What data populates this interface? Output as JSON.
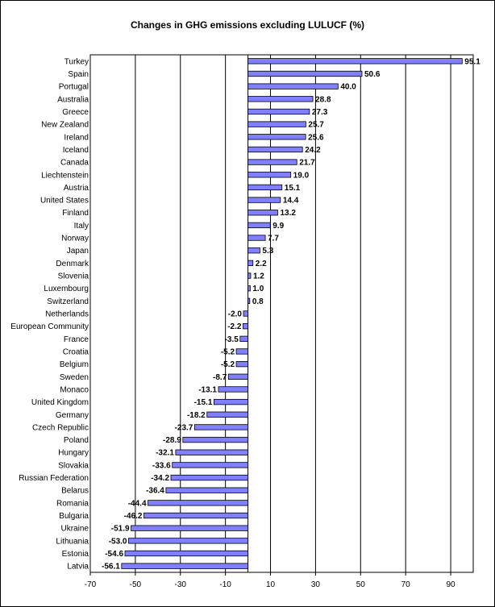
{
  "chart_data": {
    "type": "bar",
    "orientation": "horizontal",
    "title": "Changes in GHG emissions excluding LULUCF (%)",
    "xlabel": "",
    "ylabel": "",
    "xlim": [
      -70,
      100
    ],
    "x_ticks": [
      -70,
      -50,
      -30,
      -10,
      10,
      30,
      50,
      70,
      90
    ],
    "grid": "vertical",
    "legend": "none",
    "bar_color": "#8080ff",
    "bar_edge_color": "#000000",
    "categories": [
      "Turkey",
      "Spain",
      "Portugal",
      "Australia",
      "Greece",
      "New Zealand",
      "Ireland",
      "Iceland",
      "Canada",
      "Liechtenstein",
      "Austria",
      "United States",
      "Finland",
      "Italy",
      "Norway",
      "Japan",
      "Denmark",
      "Slovenia",
      "Luxembourg",
      "Switzerland",
      "Netherlands",
      "European Community",
      "France",
      "Croatia",
      "Belgium",
      "Sweden",
      "Monaco",
      "United Kingdom",
      "Germany",
      "Czech Republic",
      "Poland",
      "Hungary",
      "Slovakia",
      "Russian Federation",
      "Belarus",
      "Romania",
      "Bulgaria",
      "Ukraine",
      "Lithuania",
      "Estonia",
      "Latvia"
    ],
    "values": [
      95.1,
      50.6,
      40.0,
      28.8,
      27.3,
      25.7,
      25.6,
      24.2,
      21.7,
      19.0,
      15.1,
      14.4,
      13.2,
      9.9,
      7.7,
      5.3,
      2.2,
      1.2,
      1.0,
      0.8,
      -2.0,
      -2.2,
      -3.5,
      -5.2,
      -5.2,
      -8.7,
      -13.1,
      -15.1,
      -18.2,
      -23.7,
      -28.9,
      -32.1,
      -33.6,
      -34.2,
      -36.4,
      -44.4,
      -46.2,
      -51.9,
      -53.0,
      -54.6,
      -56.1
    ],
    "value_labels": [
      "95.1",
      "50.6",
      "40.0",
      "28.8",
      "27.3",
      "25.7",
      "25.6",
      "24.2",
      "21.7",
      "19.0",
      "15.1",
      "14.4",
      "13.2",
      "9.9",
      "7.7",
      "5.3",
      "2.2",
      "1.2",
      "1.0",
      "0.8",
      "-2.0",
      "-2.2",
      "-3.5",
      "-5.2",
      "-5.2",
      "-8.7",
      "-13.1",
      "-15.1",
      "-18.2",
      "-23.7",
      "-28.9",
      "-32.1",
      "-33.6",
      "-34.2",
      "-36.4",
      "-44.4",
      "-46.2",
      "-51.9",
      "-53.0",
      "-54.6",
      "-56.1"
    ]
  }
}
